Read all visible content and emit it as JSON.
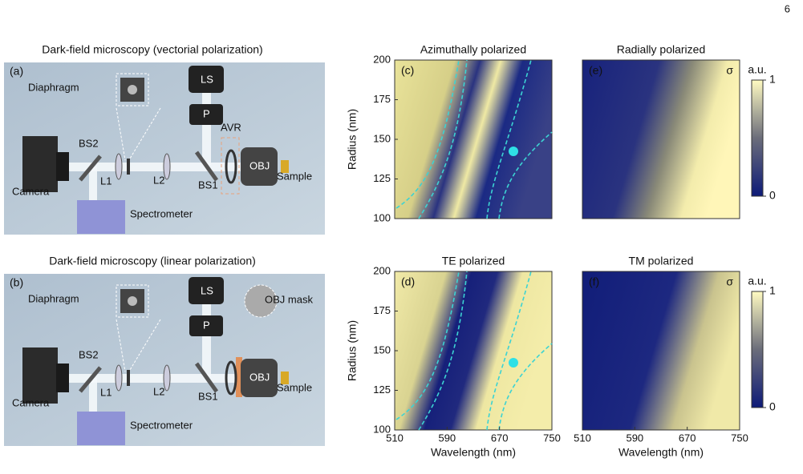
{
  "page_number": "6",
  "schematics": [
    {
      "title": "Dark-field microscopy  (vectorial polarization)",
      "panel_label": "(a)",
      "labels": {
        "diaphragm": "Diaphragm",
        "ls": "LS",
        "p": "P",
        "avr": "AVR",
        "bs2": "BS2",
        "obj": "OBJ",
        "sample": "Sample",
        "camera": "Camera",
        "l1": "L1",
        "l2": "L2",
        "bs1": "BS1",
        "spectrometer": "Spectrometer"
      }
    },
    {
      "title": "Dark-field microscopy (linear polarization)",
      "panel_label": "(b)",
      "labels": {
        "diaphragm": "Diaphragm",
        "ls": "LS",
        "p": "P",
        "objmask": "OBJ mask",
        "bs2": "BS2",
        "obj": "OBJ",
        "sample": "Sample",
        "camera": "Camera",
        "l1": "L1",
        "l2": "L2",
        "bs1": "BS1",
        "spectrometer": "Spectrometer"
      }
    }
  ],
  "maps": {
    "y_label": "Radius (nm)",
    "x_label": "Wavelength (nm)",
    "ylim": [
      100,
      200
    ],
    "yticks": [
      100,
      125,
      150,
      175,
      200
    ],
    "xlim": [
      510,
      750
    ],
    "xticks": [
      510,
      590,
      670,
      750
    ],
    "panels": [
      {
        "title": "Azimuthally polarized",
        "label": "(c)"
      },
      {
        "title": "Radially polarized",
        "label": "(e)",
        "symbol": "σ"
      },
      {
        "title": "TE polarized",
        "label": "(d)"
      },
      {
        "title": "TM polarized",
        "label": "(f)",
        "symbol": "σ"
      }
    ],
    "colorbar": {
      "unit": "a.u.",
      "ticks": [
        0,
        1
      ]
    }
  }
}
